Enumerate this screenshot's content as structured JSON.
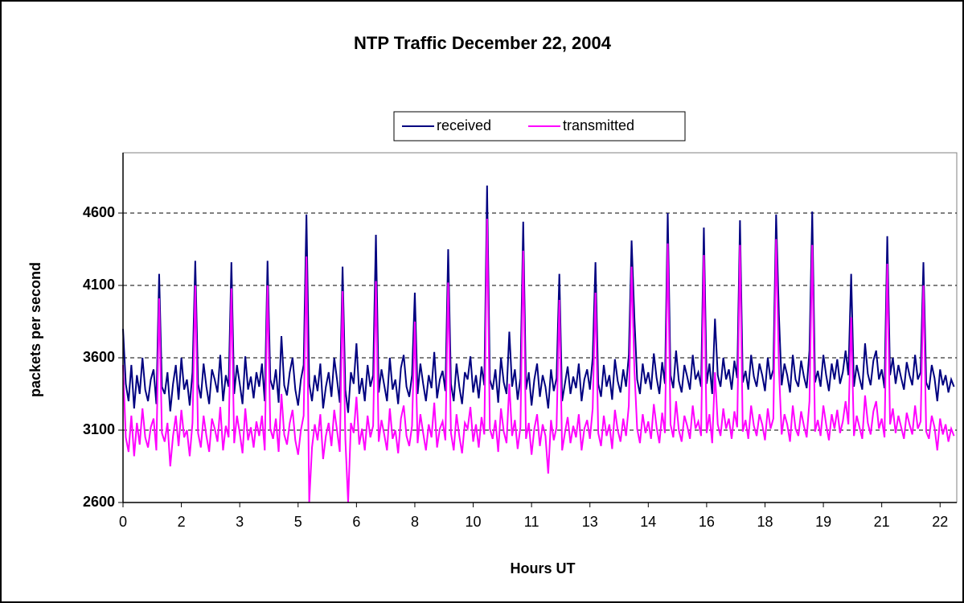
{
  "chart_data": {
    "type": "line",
    "title": "NTP Traffic December 22, 2004",
    "x_label": "Hours UT",
    "y_label": "packets per second",
    "legend": "top",
    "grid": true,
    "ylim": [
      2600,
      5000
    ],
    "yticks": [
      2600,
      3100,
      3600,
      4100,
      4600
    ],
    "categories": [
      "0",
      null,
      null,
      null,
      null,
      null,
      null,
      null,
      null,
      null,
      null,
      null,
      null,
      null,
      null,
      null,
      null,
      null,
      null,
      null,
      null,
      "2",
      null,
      null,
      null,
      null,
      null,
      null,
      null,
      null,
      null,
      null,
      null,
      null,
      null,
      null,
      null,
      null,
      null,
      null,
      null,
      null,
      "3",
      null,
      null,
      null,
      null,
      null,
      null,
      null,
      null,
      null,
      null,
      null,
      null,
      null,
      null,
      null,
      null,
      null,
      null,
      null,
      null,
      "5",
      null,
      null,
      null,
      null,
      null,
      null,
      null,
      null,
      null,
      null,
      null,
      null,
      null,
      null,
      null,
      null,
      null,
      null,
      null,
      null,
      "6",
      null,
      null,
      null,
      null,
      null,
      null,
      null,
      null,
      null,
      null,
      null,
      null,
      null,
      null,
      null,
      null,
      null,
      null,
      null,
      null,
      "8",
      null,
      null,
      null,
      null,
      null,
      null,
      null,
      null,
      null,
      null,
      null,
      null,
      null,
      null,
      null,
      null,
      null,
      null,
      null,
      null,
      "10",
      null,
      null,
      null,
      null,
      null,
      null,
      null,
      null,
      null,
      null,
      null,
      null,
      null,
      null,
      null,
      null,
      null,
      null,
      null,
      null,
      "11",
      null,
      null,
      null,
      null,
      null,
      null,
      null,
      null,
      null,
      null,
      null,
      null,
      null,
      null,
      null,
      null,
      null,
      null,
      null,
      null,
      "13",
      null,
      null,
      null,
      null,
      null,
      null,
      null,
      null,
      null,
      null,
      null,
      null,
      null,
      null,
      null,
      null,
      null,
      null,
      null,
      null,
      "14",
      null,
      null,
      null,
      null,
      null,
      null,
      null,
      null,
      null,
      null,
      null,
      null,
      null,
      null,
      null,
      null,
      null,
      null,
      null,
      null,
      "16",
      null,
      null,
      null,
      null,
      null,
      null,
      null,
      null,
      null,
      null,
      null,
      null,
      null,
      null,
      null,
      null,
      null,
      null,
      null,
      null,
      "18",
      null,
      null,
      null,
      null,
      null,
      null,
      null,
      null,
      null,
      null,
      null,
      null,
      null,
      null,
      null,
      null,
      null,
      null,
      null,
      null,
      "19",
      null,
      null,
      null,
      null,
      null,
      null,
      null,
      null,
      null,
      null,
      null,
      null,
      null,
      null,
      null,
      null,
      null,
      null,
      null,
      null,
      "21",
      null,
      null,
      null,
      null,
      null,
      null,
      null,
      null,
      null,
      null,
      null,
      null,
      null,
      null,
      null,
      null,
      null,
      null,
      null,
      null,
      "22",
      null,
      null,
      null,
      null,
      null
    ],
    "series": [
      {
        "name": "received",
        "color": "#000080",
        "values": [
          3800,
          3420,
          3300,
          3550,
          3250,
          3480,
          3350,
          3600,
          3380,
          3300,
          3450,
          3520,
          3280,
          4180,
          3400,
          3350,
          3500,
          3230,
          3420,
          3550,
          3310,
          3600,
          3380,
          3450,
          3270,
          3500,
          4270,
          3420,
          3320,
          3560,
          3400,
          3280,
          3520,
          3450,
          3360,
          3620,
          3300,
          3480,
          3400,
          4260,
          3350,
          3550,
          3420,
          3280,
          3610,
          3380,
          3470,
          3320,
          3500,
          3400,
          3560,
          3300,
          4270,
          3450,
          3380,
          3520,
          3290,
          3750,
          3410,
          3340,
          3500,
          3600,
          3380,
          3270,
          3450,
          3550,
          4590,
          3420,
          3300,
          3480,
          3370,
          3560,
          3250,
          3400,
          3500,
          3330,
          3600,
          3450,
          3290,
          4230,
          3380,
          3220,
          3500,
          3420,
          3700,
          3350,
          3460,
          3300,
          3550,
          3400,
          3480,
          4450,
          3360,
          3520,
          3410,
          3300,
          3600,
          3380,
          3450,
          3280,
          3530,
          3620,
          3400,
          3330,
          3480,
          4050,
          3350,
          3560,
          3420,
          3300,
          3480,
          3390,
          3640,
          3320,
          3450,
          3510,
          3370,
          4350,
          3420,
          3300,
          3560,
          3400,
          3280,
          3500,
          3450,
          3610,
          3360,
          3480,
          3320,
          3540,
          3410,
          4790,
          3450,
          3380,
          3520,
          3290,
          3600,
          3430,
          3350,
          3780,
          3400,
          3520,
          3310,
          3460,
          4540,
          3380,
          3500,
          3270,
          3450,
          3560,
          3330,
          3480,
          3400,
          3250,
          3520,
          3370,
          3460,
          4180,
          3300,
          3420,
          3540,
          3350,
          3470,
          3390,
          3560,
          3300,
          3450,
          3520,
          3380,
          3600,
          4260,
          3420,
          3330,
          3550,
          3400,
          3480,
          3310,
          3590,
          3440,
          3360,
          3520,
          3400,
          3620,
          4410,
          3880,
          3450,
          3350,
          3560,
          3420,
          3500,
          3380,
          3630,
          3460,
          3350,
          3570,
          3420,
          4600,
          3480,
          3390,
          3650,
          3440,
          3360,
          3550,
          3470,
          3380,
          3620,
          3450,
          3500,
          3400,
          4500,
          3420,
          3560,
          3350,
          3870,
          3480,
          3400,
          3600,
          3450,
          3520,
          3380,
          3580,
          3460,
          4550,
          3430,
          3510,
          3380,
          3620,
          3470,
          3400,
          3560,
          3480,
          3370,
          3600,
          3450,
          3520,
          4590,
          3900,
          3410,
          3560,
          3480,
          3360,
          3620,
          3450,
          3400,
          3580,
          3470,
          3390,
          3650,
          4610,
          3430,
          3510,
          3400,
          3620,
          3480,
          3370,
          3560,
          3450,
          3590,
          3420,
          3500,
          3650,
          3480,
          4180,
          3400,
          3550,
          3460,
          3380,
          3700,
          3490,
          3410,
          3580,
          3650,
          3450,
          3520,
          3390,
          4440,
          3480,
          3600,
          3420,
          3550,
          3460,
          3380,
          3570,
          3480,
          3410,
          3620,
          3450,
          3500,
          4260,
          3430,
          3380,
          3550,
          3460,
          3300,
          3520,
          3410,
          3480,
          3360,
          3450,
          3400
        ]
      },
      {
        "name": "transmitted",
        "color": "#ff00ff",
        "values": [
          3550,
          3050,
          2950,
          3200,
          2920,
          3150,
          3000,
          3250,
          3050,
          2980,
          3120,
          3180,
          2960,
          4010,
          3080,
          3020,
          3150,
          2850,
          3060,
          3200,
          2990,
          3240,
          3050,
          3100,
          2920,
          3150,
          4100,
          3080,
          2980,
          3200,
          3060,
          2950,
          3180,
          3110,
          3020,
          3260,
          2960,
          3130,
          3050,
          4080,
          3010,
          3200,
          3080,
          2940,
          3250,
          3030,
          3120,
          2980,
          3160,
          3060,
          3200,
          2960,
          4100,
          3110,
          3040,
          3180,
          2950,
          3350,
          3070,
          3000,
          3150,
          3240,
          3030,
          2930,
          3100,
          3200,
          4300,
          2600,
          2980,
          3140,
          3030,
          3210,
          2900,
          3060,
          3150,
          2990,
          3240,
          3100,
          2950,
          4060,
          3040,
          2600,
          3150,
          3080,
          3330,
          3000,
          3110,
          2960,
          3200,
          3050,
          3130,
          4130,
          3020,
          3170,
          3070,
          2960,
          3250,
          3040,
          3100,
          2940,
          3180,
          3270,
          3060,
          2990,
          3130,
          3850,
          3010,
          3210,
          3080,
          2960,
          3140,
          3050,
          3290,
          2980,
          3110,
          3160,
          3030,
          4120,
          3080,
          2960,
          3210,
          3060,
          2940,
          3150,
          3110,
          3260,
          3020,
          3140,
          2980,
          3190,
          3070,
          4560,
          3110,
          3040,
          3170,
          2950,
          3250,
          3090,
          3010,
          3420,
          3060,
          3170,
          2970,
          3120,
          4340,
          3040,
          3150,
          2930,
          3110,
          3210,
          2990,
          3140,
          3060,
          2800,
          3170,
          3030,
          3120,
          4000,
          2960,
          3080,
          3190,
          3010,
          3130,
          3050,
          3210,
          2960,
          3110,
          3170,
          3040,
          3250,
          4050,
          3080,
          2990,
          3200,
          3060,
          3140,
          2970,
          3240,
          3100,
          3020,
          3180,
          3060,
          3270,
          4230,
          3520,
          3110,
          3010,
          3210,
          3080,
          3160,
          3040,
          3280,
          3120,
          3010,
          3220,
          3080,
          4390,
          3140,
          3050,
          3300,
          3100,
          3020,
          3200,
          3130,
          3040,
          3270,
          3110,
          3160,
          3060,
          4310,
          3080,
          3210,
          3010,
          3500,
          3140,
          3060,
          3250,
          3110,
          3180,
          3040,
          3230,
          3120,
          4380,
          3090,
          3170,
          3040,
          3270,
          3130,
          3060,
          3210,
          3140,
          3030,
          3250,
          3110,
          3180,
          4420,
          3530,
          3070,
          3210,
          3140,
          3020,
          3270,
          3110,
          3060,
          3230,
          3130,
          3050,
          3300,
          4380,
          3090,
          3170,
          3060,
          3270,
          3140,
          3030,
          3210,
          3110,
          3240,
          3080,
          3160,
          3300,
          3140,
          3880,
          3060,
          3200,
          3120,
          3040,
          3340,
          3150,
          3070,
          3230,
          3300,
          3110,
          3180,
          3050,
          4250,
          3140,
          3250,
          3080,
          3200,
          3120,
          3040,
          3220,
          3140,
          3070,
          3270,
          3110,
          3160,
          4100,
          3090,
          3040,
          3200,
          3120,
          2960,
          3180,
          3070,
          3140,
          3020,
          3110,
          3060
        ]
      }
    ]
  }
}
